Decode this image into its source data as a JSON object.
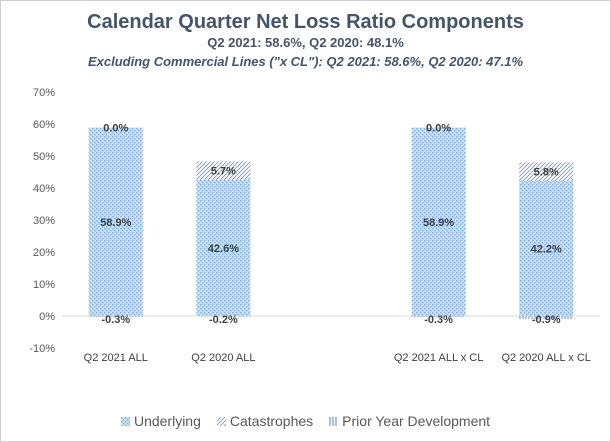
{
  "chart_data": {
    "type": "bar",
    "stacked": true,
    "title": "Calendar Quarter Net Loss Ratio Components",
    "subtitle": "Q2 2021: 58.6%, Q2 2020: 48.1%",
    "subtitle2": "Excluding Commercial Lines (\"x CL\"): Q2 2021: 58.6%, Q2 2020: 47.1%",
    "categories": [
      "Q2 2021 ALL",
      "Q2 2020 ALL",
      "",
      "Q2 2021 ALL x CL",
      "Q2 2020 ALL x CL"
    ],
    "series": [
      {
        "name": "Underlying",
        "values": [
          58.9,
          42.6,
          null,
          58.9,
          42.2
        ],
        "labels": [
          "58.9%",
          "42.6%",
          "",
          "58.9%",
          "42.2%"
        ]
      },
      {
        "name": "Catastrophes",
        "values": [
          0.0,
          5.7,
          null,
          0.0,
          5.8
        ],
        "labels": [
          "0.0%",
          "5.7%",
          "",
          "0.0%",
          "5.8%"
        ]
      },
      {
        "name": "Prior Year Development",
        "values": [
          -0.3,
          -0.2,
          null,
          -0.3,
          -0.9
        ],
        "labels": [
          "-0.3%",
          "-0.2%",
          "",
          "-0.3%",
          "-0.9%"
        ]
      }
    ],
    "yticks": [
      "70%",
      "60%",
      "50%",
      "40%",
      "30%",
      "20%",
      "10%",
      "0%",
      "-10%"
    ],
    "ylim": [
      -10,
      70
    ],
    "grid": false,
    "legend": "bottom",
    "colors": {
      "underlying_fill": "#bdd7ee",
      "underlying_dot": "#5b9bd5",
      "catastrophe_line": "#8497b0",
      "pyd_line": "#4472c4",
      "axis": "#d9d9d9",
      "title": "#44546a"
    }
  }
}
